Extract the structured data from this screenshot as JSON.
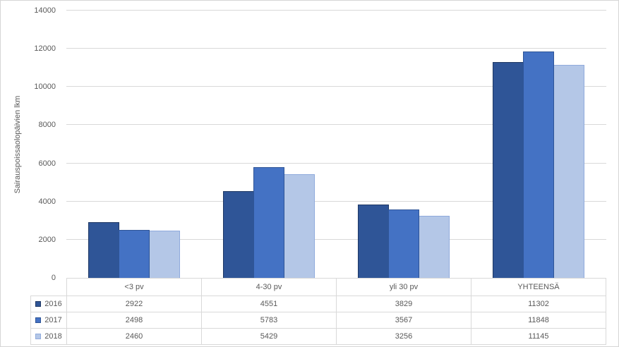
{
  "window": {
    "background": "#FFFFFF",
    "border_color": "#D6D6D6"
  },
  "chart_data": {
    "type": "bar",
    "title": "",
    "xlabel": "",
    "ylabel": "Sairauspoissaolopäivien lkm",
    "categories": [
      "<3 pv",
      "4-30 pv",
      "yli 30 pv",
      "YHTEENSÄ"
    ],
    "series": [
      {
        "name": "2016",
        "values": [
          2922,
          4551,
          3829,
          11302
        ],
        "color": "#2F5597",
        "border_color": "#1F3864"
      },
      {
        "name": "2017",
        "values": [
          2498,
          5783,
          3567,
          11848
        ],
        "color": "#4472C4",
        "border_color": "#2F5597"
      },
      {
        "name": "2018",
        "values": [
          2460,
          5429,
          3256,
          11145
        ],
        "color": "#B4C7E7",
        "border_color": "#8FAADC"
      }
    ],
    "ylim": [
      0,
      14000
    ],
    "yticks": [
      0,
      2000,
      4000,
      6000,
      8000,
      10000,
      12000,
      14000
    ],
    "grid": true,
    "legend_position": "table-rows-left",
    "data_table_shown": true
  },
  "colors": {
    "gridline": "#D9D9D9",
    "axis_text": "#595959",
    "table_border": "#D9D9D9",
    "table_text": "#595959"
  }
}
